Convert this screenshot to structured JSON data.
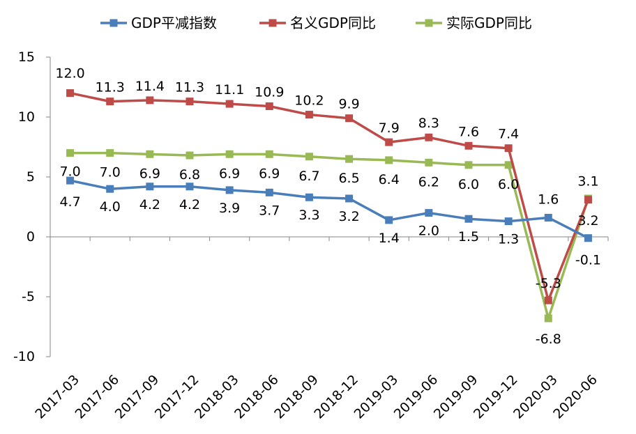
{
  "chart_data": {
    "type": "line",
    "categories": [
      "2017-03",
      "2017-06",
      "2017-09",
      "2017-12",
      "2018-03",
      "2018-06",
      "2018-09",
      "2018-12",
      "2019-03",
      "2019-06",
      "2019-09",
      "2019-12",
      "2020-03",
      "2020-06"
    ],
    "series": [
      {
        "name": "GDP平减指数",
        "color": "#4a7ebb",
        "marker": "square",
        "values": [
          4.7,
          4.0,
          4.2,
          4.2,
          3.9,
          3.7,
          3.3,
          3.2,
          1.4,
          2.0,
          1.5,
          1.3,
          1.6,
          -0.1
        ],
        "labels": [
          "4.7",
          "4.0",
          "4.2",
          "4.2",
          "3.9",
          "3.7",
          "3.3",
          "3.2",
          "1.4",
          "2.0",
          "1.5",
          "1.3",
          "1.6",
          "-0.1"
        ]
      },
      {
        "name": "名义GDP同比",
        "color": "#be4b48",
        "marker": "square",
        "values": [
          12.0,
          11.3,
          11.4,
          11.3,
          11.1,
          10.9,
          10.2,
          9.9,
          7.9,
          8.3,
          7.6,
          7.4,
          -5.3,
          3.1
        ],
        "labels": [
          "12.0",
          "11.3",
          "11.4",
          "11.3",
          "11.1",
          "10.9",
          "10.2",
          "9.9",
          "7.9",
          "8.3",
          "7.6",
          "7.4",
          "-5.3",
          "3.1"
        ]
      },
      {
        "name": "实际GDP同比",
        "color": "#98b954",
        "marker": "square",
        "values": [
          7.0,
          7.0,
          6.9,
          6.8,
          6.9,
          6.9,
          6.7,
          6.5,
          6.4,
          6.2,
          6.0,
          6.0,
          -6.8,
          3.2
        ],
        "labels": [
          "7.0",
          "7.0",
          "6.9",
          "6.8",
          "6.9",
          "6.9",
          "6.7",
          "6.5",
          "6.4",
          "6.2",
          "6.0",
          "6.0",
          "-6.8",
          "3.2"
        ]
      }
    ],
    "yticks": [
      "15",
      "10",
      "5",
      "0",
      "-5",
      "-10"
    ],
    "ylim": [
      -10,
      15
    ],
    "grid": false,
    "legend_position": "top",
    "title": "",
    "xlabel": "",
    "ylabel": ""
  }
}
